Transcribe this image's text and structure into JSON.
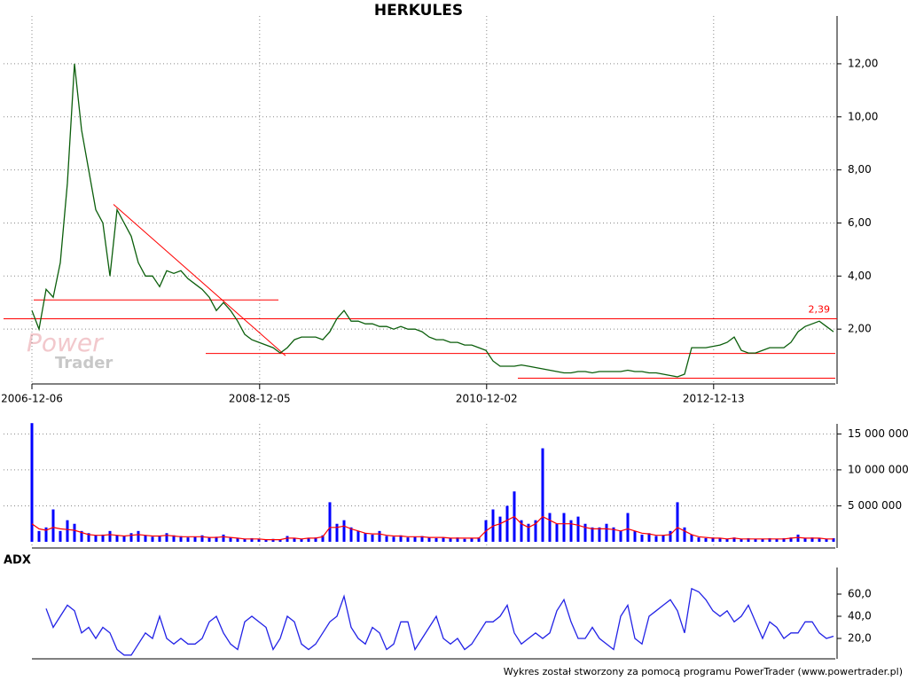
{
  "chart_data": [
    {
      "type": "line",
      "title": "HERKULES",
      "color": "#0b5e0b",
      "values": [
        2.7,
        2.0,
        3.5,
        3.2,
        4.5,
        7.5,
        12.0,
        9.5,
        8.0,
        6.5,
        6.0,
        4.0,
        6.5,
        6.0,
        5.5,
        4.5,
        4.0,
        4.0,
        3.6,
        4.2,
        4.1,
        4.2,
        3.9,
        3.7,
        3.5,
        3.2,
        2.7,
        3.0,
        2.7,
        2.3,
        1.8,
        1.6,
        1.5,
        1.4,
        1.3,
        1.1,
        1.3,
        1.6,
        1.7,
        1.7,
        1.7,
        1.6,
        1.9,
        2.4,
        2.7,
        2.3,
        2.3,
        2.2,
        2.2,
        2.1,
        2.1,
        2.0,
        2.1,
        2.0,
        2.0,
        1.9,
        1.7,
        1.6,
        1.6,
        1.5,
        1.5,
        1.4,
        1.4,
        1.3,
        1.2,
        0.8,
        0.6,
        0.6,
        0.6,
        0.65,
        0.6,
        0.55,
        0.5,
        0.45,
        0.4,
        0.35,
        0.35,
        0.4,
        0.4,
        0.35,
        0.4,
        0.4,
        0.4,
        0.4,
        0.45,
        0.4,
        0.4,
        0.35,
        0.35,
        0.3,
        0.25,
        0.2,
        0.3,
        1.3,
        1.3,
        1.3,
        1.35,
        1.4,
        1.5,
        1.7,
        1.2,
        1.1,
        1.1,
        1.2,
        1.3,
        1.3,
        1.3,
        1.5,
        1.9,
        2.1,
        2.2,
        2.3,
        2.1,
        1.9
      ],
      "xlim": [
        0,
        113
      ],
      "xticks": [
        {
          "value": 0,
          "label": "2006-12-06"
        },
        {
          "value": 32.1,
          "label": "2008-12-05"
        },
        {
          "value": 64.1,
          "label": "2010-12-02"
        },
        {
          "value": 96.1,
          "label": "2012-12-13"
        }
      ],
      "ylim": [
        0,
        12.9
      ],
      "yticks": [
        {
          "value": 2,
          "label": "2,00"
        },
        {
          "value": 4,
          "label": "4,00"
        },
        {
          "value": 6,
          "label": "6,00"
        },
        {
          "value": 8,
          "label": "8,00"
        },
        {
          "value": 10,
          "label": "10,00"
        },
        {
          "value": 12,
          "label": "12,00"
        }
      ],
      "grid": true,
      "line_color": "#ff0000",
      "lines": [
        {
          "x": [
            11.5,
            35.75
          ],
          "y": [
            6.7,
            1.0
          ]
        },
        {
          "x": [
            0.25,
            34.75
          ],
          "y": [
            3.1,
            3.1
          ]
        },
        {
          "x": [
            24.5,
            113.25
          ],
          "y": [
            1.08,
            1.08
          ]
        },
        {
          "x": [
            68.5,
            113.25
          ],
          "y": [
            0.15,
            0.15
          ]
        }
      ],
      "level": {
        "value": 2.39,
        "label": "2,39"
      }
    },
    {
      "type": "bar",
      "series": [
        {
          "type": "bar",
          "color": "#0000ff",
          "values": [
            16500000,
            1500000,
            2000000,
            4500000,
            1500000,
            3000000,
            2500000,
            1500000,
            1200000,
            900000,
            1000000,
            1500000,
            900000,
            800000,
            1200000,
            1500000,
            900000,
            700000,
            800000,
            1200000,
            900000,
            800000,
            600000,
            700000,
            900000,
            600000,
            700000,
            1000000,
            600000,
            500000,
            400000,
            500000,
            400000,
            300000,
            400000,
            300000,
            800000,
            500000,
            400000,
            500000,
            600000,
            900000,
            5500000,
            2500000,
            3000000,
            2000000,
            1500000,
            1200000,
            1000000,
            1500000,
            800000,
            700000,
            900000,
            600000,
            700000,
            800000,
            600000,
            500000,
            600000,
            500000,
            600000,
            400000,
            500000,
            600000,
            3000000,
            4500000,
            3500000,
            5000000,
            7000000,
            3000000,
            2500000,
            3000000,
            13000000,
            4000000,
            2500000,
            4000000,
            3000000,
            3500000,
            2500000,
            2000000,
            2000000,
            2500000,
            2000000,
            1500000,
            4000000,
            1500000,
            1000000,
            1200000,
            800000,
            900000,
            1500000,
            5500000,
            2000000,
            1000000,
            600000,
            500000,
            600000,
            500000,
            400000,
            600000,
            400000,
            500000,
            400000,
            400000,
            500000,
            400000,
            500000,
            600000,
            1000000,
            500000,
            600000,
            500000,
            400000,
            500000
          ]
        },
        {
          "type": "line",
          "color": "#ff0000",
          "values": [
            2500000,
            1800000,
            1600000,
            2000000,
            1800000,
            1700000,
            1600000,
            1300000,
            1000000,
            900000,
            900000,
            1000000,
            900000,
            800000,
            900000,
            1000000,
            900000,
            800000,
            800000,
            900000,
            800000,
            700000,
            700000,
            700000,
            700000,
            600000,
            600000,
            700000,
            600000,
            500000,
            400000,
            400000,
            400000,
            300000,
            300000,
            300000,
            500000,
            500000,
            400000,
            500000,
            500000,
            700000,
            2000000,
            2000000,
            2200000,
            1800000,
            1500000,
            1200000,
            1100000,
            1100000,
            900000,
            800000,
            800000,
            700000,
            700000,
            700000,
            600000,
            600000,
            600000,
            500000,
            500000,
            500000,
            500000,
            500000,
            1500000,
            2200000,
            2500000,
            3000000,
            3500000,
            2500000,
            2000000,
            2500000,
            3500000,
            3000000,
            2500000,
            2500000,
            2500000,
            2300000,
            2000000,
            1800000,
            1800000,
            1800000,
            1700000,
            1500000,
            1800000,
            1500000,
            1200000,
            1100000,
            900000,
            900000,
            1000000,
            2000000,
            1500000,
            1000000,
            700000,
            600000,
            500000,
            500000,
            400000,
            500000,
            400000,
            400000,
            400000,
            400000,
            400000,
            400000,
            400000,
            500000,
            600000,
            500000,
            500000,
            500000,
            400000,
            400000
          ]
        }
      ],
      "xlim": [
        0,
        113
      ],
      "ylim": [
        0,
        16400000
      ],
      "yticks": [
        {
          "value": 5000000,
          "label": "5 000 000"
        },
        {
          "value": 10000000,
          "label": "10 000 000"
        },
        {
          "value": 15000000,
          "label": "15 000 000"
        }
      ],
      "grid": true
    },
    {
      "type": "line",
      "title": "ADX",
      "color": "#2323e6",
      "values": [
        null,
        null,
        47,
        30,
        40,
        50,
        45,
        25,
        30,
        20,
        30,
        25,
        10,
        5,
        5,
        15,
        25,
        20,
        40,
        20,
        15,
        20,
        15,
        15,
        20,
        35,
        40,
        25,
        15,
        10,
        35,
        40,
        35,
        30,
        10,
        20,
        40,
        35,
        15,
        10,
        15,
        25,
        35,
        40,
        58,
        30,
        20,
        15,
        30,
        25,
        10,
        15,
        35,
        35,
        10,
        20,
        30,
        40,
        20,
        15,
        20,
        10,
        15,
        25,
        35,
        35,
        40,
        50,
        25,
        15,
        20,
        25,
        20,
        25,
        45,
        55,
        35,
        20,
        20,
        30,
        20,
        15,
        10,
        40,
        50,
        20,
        15,
        40,
        45,
        50,
        55,
        45,
        25,
        65,
        62,
        55,
        45,
        40,
        45,
        35,
        40,
        50,
        35,
        20,
        35,
        30,
        20,
        25,
        25,
        35,
        35,
        25,
        20,
        22
      ],
      "xlim": [
        0,
        113
      ],
      "ylim": [
        0,
        84
      ],
      "yticks": [
        {
          "value": 20,
          "label": "20,0"
        },
        {
          "value": 40,
          "label": "40,0"
        },
        {
          "value": 60,
          "label": "60,0"
        }
      ],
      "grid": false
    }
  ],
  "watermark": [
    "Power",
    "Trader"
  ],
  "footer": "Wykres został stworzony za pomocą programu PowerTrader (www.powertrader.pl)"
}
